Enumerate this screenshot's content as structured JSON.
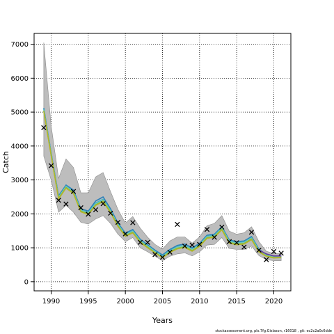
{
  "chart_data": {
    "type": "line",
    "xlabel": "Years",
    "ylabel": "Catch",
    "xlim": [
      1987.7,
      2022.3
    ],
    "ylim": [
      -270,
      7320
    ],
    "x_ticks": [
      1990,
      1995,
      2000,
      2005,
      2010,
      2015,
      2020
    ],
    "y_ticks": [
      0,
      1000,
      2000,
      3000,
      4000,
      5000,
      6000,
      7000
    ],
    "grid": true,
    "x": [
      1989,
      1990,
      1991,
      1992,
      1993,
      1994,
      1995,
      1996,
      1997,
      1998,
      1999,
      2000,
      2001,
      2002,
      2003,
      2004,
      2005,
      2006,
      2007,
      2008,
      2009,
      2010,
      2011,
      2012,
      2013,
      2014,
      2015,
      2016,
      2017,
      2018,
      2019,
      2020,
      2021
    ],
    "band": {
      "lower": [
        3700,
        3000,
        2050,
        2250,
        2050,
        1750,
        1700,
        1850,
        1950,
        1720,
        1400,
        1180,
        1300,
        1000,
        880,
        750,
        620,
        750,
        820,
        850,
        760,
        880,
        1080,
        1100,
        1300,
        980,
        950,
        950,
        1050,
        770,
        650,
        620,
        620
      ],
      "upper": [
        7050,
        4600,
        3050,
        3620,
        3370,
        2620,
        2620,
        3090,
        3220,
        2660,
        2130,
        1730,
        1920,
        1580,
        1310,
        1100,
        960,
        1200,
        1320,
        1320,
        1140,
        1320,
        1650,
        1720,
        1950,
        1490,
        1400,
        1440,
        1620,
        1180,
        900,
        830,
        830
      ]
    },
    "series": [
      {
        "values": [
          5120,
          3800,
          2530,
          2850,
          2700,
          2150,
          2080,
          2380,
          2500,
          2150,
          1730,
          1430,
          1540,
          1250,
          1090,
          930,
          790,
          950,
          1070,
          1110,
          1000,
          1130,
          1370,
          1400,
          1620,
          1230,
          1180,
          1200,
          1330,
          960,
          790,
          740,
          750
        ],
        "color": "#2c7fb8"
      },
      {
        "values": [
          5090,
          3780,
          2500,
          2820,
          2660,
          2120,
          2040,
          2320,
          2430,
          2100,
          1690,
          1400,
          1500,
          1220,
          1060,
          900,
          760,
          920,
          1030,
          1070,
          960,
          1100,
          1340,
          1370,
          1590,
          1200,
          1150,
          1170,
          1300,
          940,
          780,
          730,
          740
        ],
        "color": "#41b6c4"
      },
      {
        "values": [
          5060,
          3760,
          2480,
          2800,
          2640,
          2100,
          2020,
          2290,
          2400,
          2080,
          1670,
          1380,
          1480,
          1200,
          1040,
          880,
          740,
          900,
          1010,
          1050,
          940,
          1080,
          1320,
          1350,
          1570,
          1180,
          1130,
          1150,
          1280,
          920,
          770,
          720,
          730
        ],
        "color": "#7fcdbb"
      },
      {
        "values": [
          5040,
          3740,
          2460,
          2780,
          2620,
          2080,
          2000,
          2270,
          2380,
          2060,
          1650,
          1360,
          1460,
          1180,
          1020,
          860,
          720,
          880,
          990,
          1030,
          920,
          1060,
          1300,
          1330,
          1550,
          1160,
          1110,
          1130,
          1260,
          900,
          760,
          710,
          720
        ],
        "color": "#7fbc41"
      },
      {
        "values": [
          5020,
          3720,
          2440,
          2760,
          2600,
          2060,
          1980,
          2250,
          2360,
          2040,
          1630,
          1340,
          1440,
          1160,
          1000,
          850,
          705,
          860,
          970,
          1010,
          900,
          1040,
          1280,
          1310,
          1530,
          1140,
          1090,
          1110,
          1240,
          880,
          750,
          700,
          710
        ],
        "color": "#b5b52a"
      },
      {
        "values": [
          null,
          null,
          null,
          null,
          null,
          null,
          null,
          null,
          null,
          null,
          null,
          null,
          null,
          null,
          null,
          null,
          null,
          null,
          null,
          null,
          null,
          null,
          null,
          null,
          null,
          null,
          null,
          null,
          null,
          930,
          820,
          760,
          760
        ],
        "color": "#6a3d9a"
      }
    ],
    "observed": {
      "x": [
        1989,
        1990,
        1991,
        1992,
        1993,
        1994,
        1995,
        1996,
        1997,
        1998,
        1999,
        2000,
        2001,
        2002,
        2003,
        2004,
        2005,
        2006,
        2007,
        2008,
        2009,
        2010,
        2011,
        2012,
        2013,
        2014,
        2015,
        2016,
        2017,
        2018,
        2019,
        2020,
        2021
      ],
      "y": [
        4540,
        3420,
        2400,
        2290,
        2660,
        2180,
        1990,
        2120,
        2300,
        2020,
        1750,
        1410,
        1740,
        1160,
        1160,
        800,
        720,
        870,
        1690,
        1050,
        1080,
        1100,
        1540,
        1310,
        1610,
        1180,
        1150,
        1020,
        1460,
        930,
        650,
        890,
        840
      ]
    }
  },
  "footnote": "stockassessment.org, pls.7fg.Gislason, r16018 , git: ec2c2a0c6dde"
}
